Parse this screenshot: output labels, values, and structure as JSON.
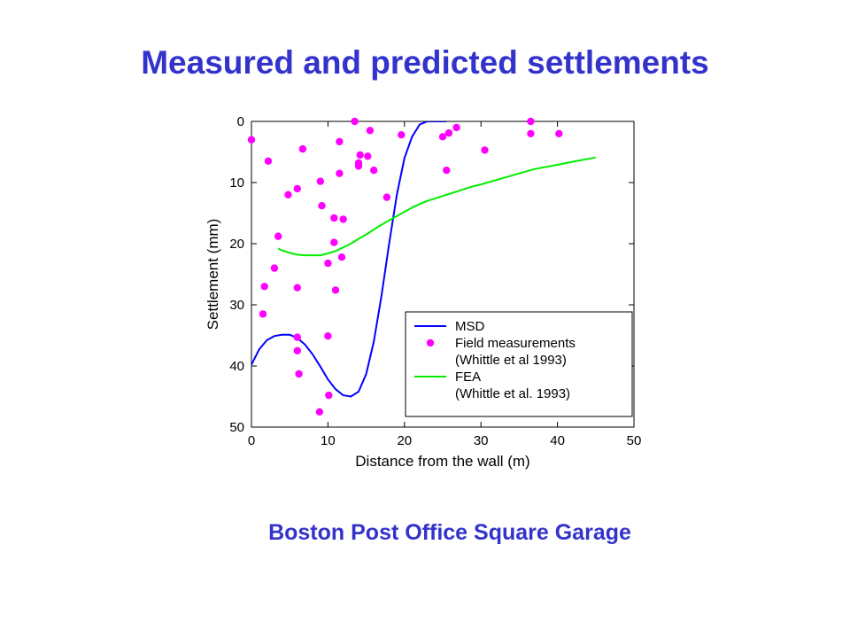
{
  "page": {
    "title": "Measured and predicted settlements",
    "caption": "Boston Post Office Square Garage",
    "title_color": "#3333CC"
  },
  "chart_data": {
    "type": "scatter",
    "xlabel": "Distance from the wall (m)",
    "ylabel": "Settlement (mm)",
    "xlim": [
      0,
      50
    ],
    "ylim": [
      0,
      50
    ],
    "y_inverted": true,
    "xticks": [
      0,
      10,
      20,
      30,
      40,
      50
    ],
    "yticks": [
      0,
      10,
      20,
      30,
      40,
      50
    ],
    "grid": false,
    "legend_position": "bottom-right",
    "legend": [
      {
        "key": "msd",
        "lines": [
          "MSD"
        ]
      },
      {
        "key": "field",
        "lines": [
          "Field measurements",
          "(Whittle et al 1993)"
        ]
      },
      {
        "key": "fea",
        "lines": [
          "FEA",
          "(Whittle et al. 1993)"
        ]
      }
    ],
    "series": [
      {
        "key": "msd",
        "name": "MSD",
        "kind": "line",
        "color": "#0000FF",
        "x": [
          0,
          1,
          2,
          3,
          4,
          5,
          6,
          7,
          8,
          9,
          10,
          11,
          12,
          13,
          14,
          15,
          16,
          17,
          18,
          19,
          20,
          21,
          22,
          23,
          24,
          25,
          25.5
        ],
        "y": [
          39.8,
          37.3,
          35.8,
          35.1,
          34.9,
          34.9,
          35.4,
          36.5,
          38.1,
          40.1,
          42.2,
          43.8,
          44.8,
          45,
          44.2,
          41.3,
          36,
          28.5,
          20,
          12,
          6,
          2.5,
          0.5,
          0,
          0,
          0,
          0
        ]
      },
      {
        "key": "field",
        "name": "Field measurements",
        "kind": "scatter",
        "color": "#FF00FF",
        "points": [
          [
            0,
            3
          ],
          [
            1.5,
            31.5
          ],
          [
            1.7,
            27
          ],
          [
            2.2,
            6.5
          ],
          [
            3,
            24
          ],
          [
            3.5,
            18.8
          ],
          [
            4.8,
            12
          ],
          [
            6,
            11
          ],
          [
            6,
            27.2
          ],
          [
            6,
            35.3
          ],
          [
            6,
            37.5
          ],
          [
            6.2,
            41.3
          ],
          [
            6.7,
            4.5
          ],
          [
            8.9,
            47.5
          ],
          [
            9,
            9.8
          ],
          [
            9.2,
            13.8
          ],
          [
            10,
            23.2
          ],
          [
            10,
            35.1
          ],
          [
            10.1,
            44.8
          ],
          [
            10.8,
            15.8
          ],
          [
            10.8,
            19.8
          ],
          [
            11,
            27.6
          ],
          [
            11.5,
            3.3
          ],
          [
            11.5,
            8.5
          ],
          [
            11.8,
            22.2
          ],
          [
            12,
            16
          ],
          [
            13.5,
            0
          ],
          [
            14,
            7.3
          ],
          [
            14.2,
            5.5
          ],
          [
            14,
            6.8
          ],
          [
            15.2,
            5.7
          ],
          [
            15.5,
            1.5
          ],
          [
            16,
            8
          ],
          [
            17.7,
            12.4
          ],
          [
            19.6,
            2.2
          ],
          [
            25,
            2.5
          ],
          [
            25.5,
            8
          ],
          [
            25.8,
            1.9
          ],
          [
            26.8,
            1
          ],
          [
            30.5,
            4.7
          ],
          [
            36.5,
            0
          ],
          [
            36.5,
            2
          ],
          [
            40.2,
            2
          ]
        ]
      },
      {
        "key": "fea",
        "name": "FEA",
        "kind": "line",
        "color": "#00EE00",
        "x": [
          3.5,
          4,
          5,
          6,
          7,
          8,
          9,
          10,
          11,
          12,
          13,
          14,
          15,
          16,
          17,
          18,
          19,
          20,
          21,
          22,
          23,
          24,
          25,
          27,
          29,
          30,
          32,
          35,
          37,
          40,
          42,
          45
        ],
        "y": [
          20.8,
          21.1,
          21.5,
          21.8,
          21.9,
          21.9,
          21.9,
          21.6,
          21.2,
          20.6,
          20,
          19.2,
          18.5,
          17.7,
          16.9,
          16.2,
          15.5,
          14.8,
          14.1,
          13.5,
          13,
          12.6,
          12.2,
          11.4,
          10.6,
          10.3,
          9.6,
          8.5,
          7.8,
          7.1,
          6.6,
          5.9
        ]
      }
    ]
  }
}
